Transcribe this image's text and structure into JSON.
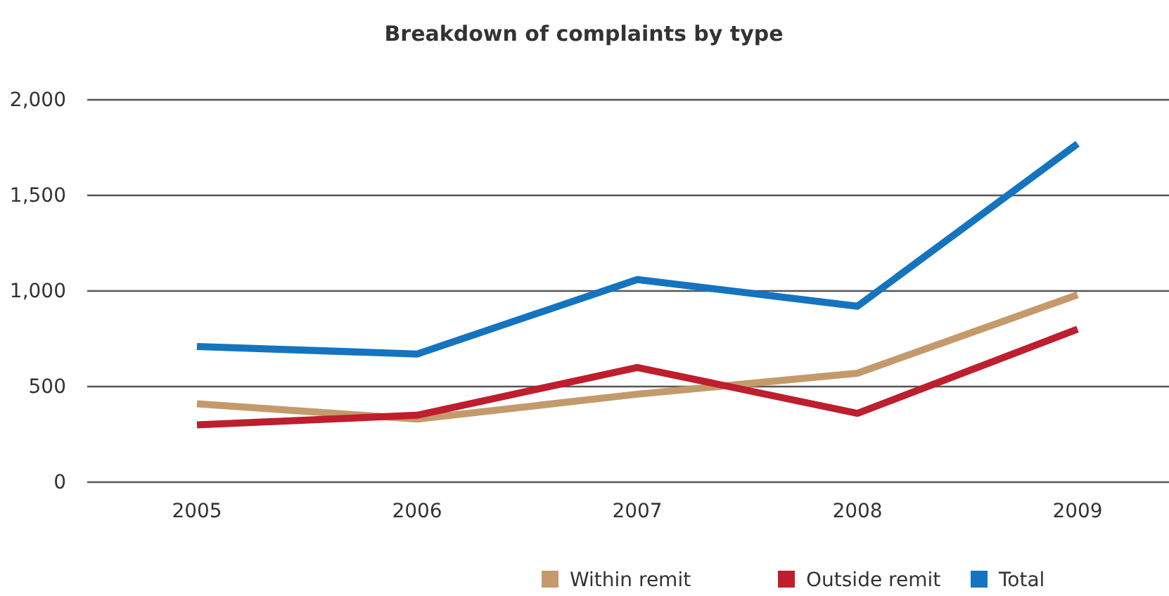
{
  "chart_data": {
    "type": "line",
    "title": "Breakdown of complaints by type",
    "categories": [
      "2005",
      "2006",
      "2007",
      "2008",
      "2009"
    ],
    "series": [
      {
        "name": "Within remit",
        "color": "#c49a6c",
        "values": [
          410,
          330,
          460,
          570,
          980
        ]
      },
      {
        "name": "Outside remit",
        "color": "#be1e2d",
        "values": [
          300,
          350,
          600,
          360,
          800
        ]
      },
      {
        "name": "Total",
        "color": "#1474bf",
        "values": [
          710,
          670,
          1060,
          920,
          1770
        ]
      }
    ],
    "ylim": [
      0,
      2000
    ],
    "yticks": [
      {
        "value": 0,
        "label": "0"
      },
      {
        "value": 500,
        "label": "500"
      },
      {
        "value": 1000,
        "label": "1,000"
      },
      {
        "value": 1500,
        "label": "1,500"
      },
      {
        "value": 2000,
        "label": "2,000"
      }
    ],
    "grid": "y",
    "legend": "bottom",
    "marker": "none",
    "line_style": "solid"
  }
}
